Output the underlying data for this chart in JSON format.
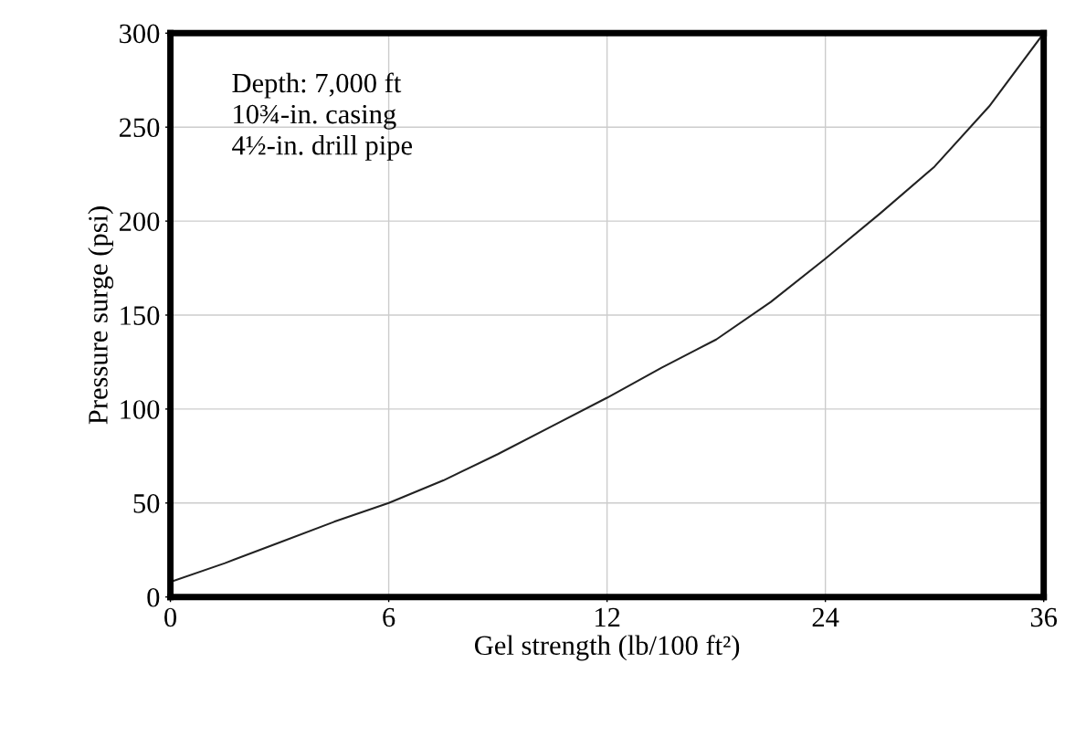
{
  "chart_data": {
    "type": "line",
    "xlabel": "Gel strength (lb/100 ft²)",
    "ylabel": "Pressure surge (psi)",
    "annotations": [
      "Depth: 7,000 ft",
      "10¾-in. casing",
      "4½-in. drill pipe"
    ],
    "categories": [
      "0",
      null,
      null,
      null,
      "6",
      null,
      null,
      null,
      "12",
      null,
      null,
      null,
      "24",
      null,
      null,
      null,
      "36"
    ],
    "series": [
      {
        "color": "#222222",
        "values": [
          8,
          18,
          29,
          40,
          50,
          62,
          76,
          91,
          106,
          122,
          137,
          157,
          180,
          204,
          229,
          261,
          300
        ]
      }
    ],
    "ylim": [
      0,
      300
    ],
    "yticks": [
      0,
      50,
      100,
      150,
      200,
      250,
      300
    ],
    "grid": true,
    "marker": "none",
    "line_style": "solid"
  }
}
